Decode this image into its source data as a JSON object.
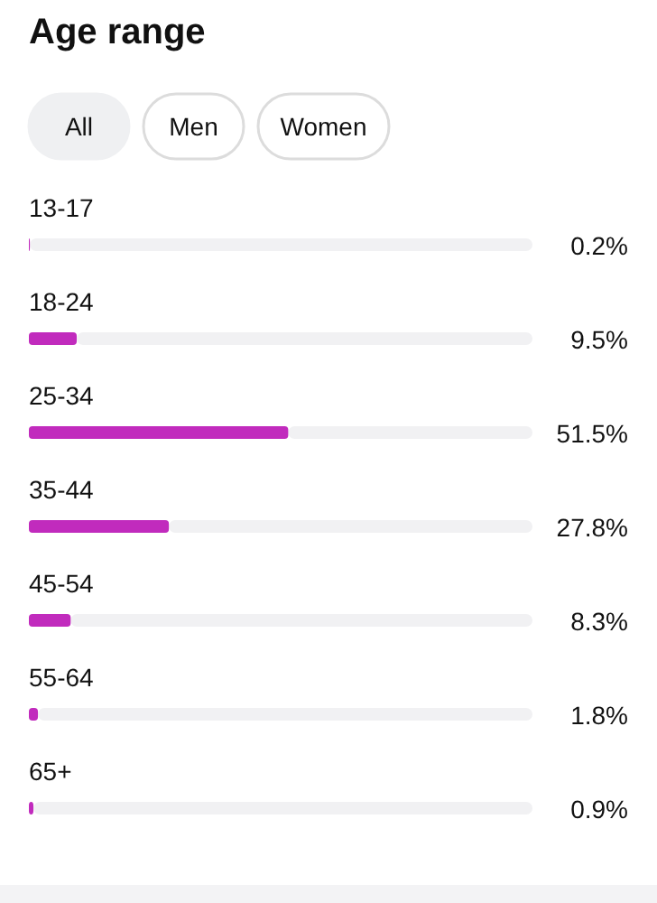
{
  "chart_data": {
    "type": "bar",
    "orientation": "horizontal",
    "title": "Age range",
    "annotations": [
      "All",
      "Men",
      "Women"
    ],
    "categories": [
      "13-17",
      "18-24",
      "25-34",
      "35-44",
      "45-54",
      "55-64",
      "65+"
    ],
    "values": [
      0.2,
      9.5,
      51.5,
      27.8,
      8.3,
      1.8,
      0.9
    ],
    "value_labels": [
      "0.2%",
      "9.5%",
      "51.5%",
      "27.8%",
      "8.3%",
      "1.8%",
      "0.9%"
    ],
    "color": "#c12bbd",
    "xlim": [
      0,
      100
    ]
  }
}
